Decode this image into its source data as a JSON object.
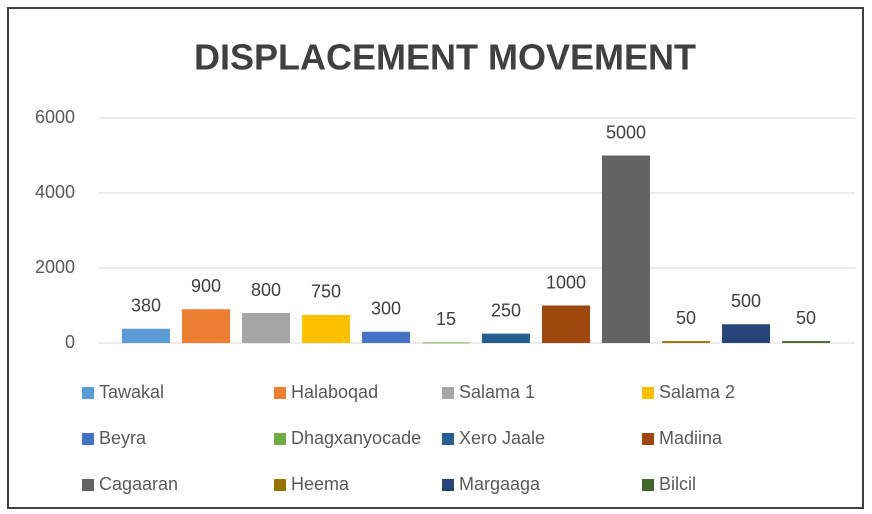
{
  "chart_data": {
    "type": "bar",
    "title": "DISPLACEMENT MOVEMENT",
    "categories": [
      null
    ],
    "series": [
      {
        "name": "Tawakal",
        "color": "#5b9bd5",
        "values": [
          380
        ]
      },
      {
        "name": "Halaboqad",
        "color": "#ed7d31",
        "values": [
          900
        ]
      },
      {
        "name": "Salama 1",
        "color": "#a5a5a5",
        "values": [
          800
        ]
      },
      {
        "name": "Salama 2",
        "color": "#ffc000",
        "values": [
          750
        ]
      },
      {
        "name": "Beyra",
        "color": "#4472c4",
        "values": [
          300
        ]
      },
      {
        "name": "Dhagxanyocade",
        "color": "#70ad47",
        "values": [
          15
        ]
      },
      {
        "name": "Xero Jaale",
        "color": "#255e91",
        "values": [
          250
        ]
      },
      {
        "name": "Madiina",
        "color": "#9e480e",
        "values": [
          1000
        ]
      },
      {
        "name": "Cagaaran",
        "color": "#636363",
        "values": [
          5000
        ]
      },
      {
        "name": "Heema",
        "color": "#997300",
        "values": [
          50
        ]
      },
      {
        "name": "Margaaga",
        "color": "#264478",
        "values": [
          500
        ]
      },
      {
        "name": "Bilcil",
        "color": "#43682b",
        "values": [
          50
        ]
      }
    ],
    "ylim": [
      0,
      6000
    ],
    "yticks": [
      0,
      2000,
      4000,
      6000
    ],
    "grid": true,
    "legend": "bottom"
  }
}
